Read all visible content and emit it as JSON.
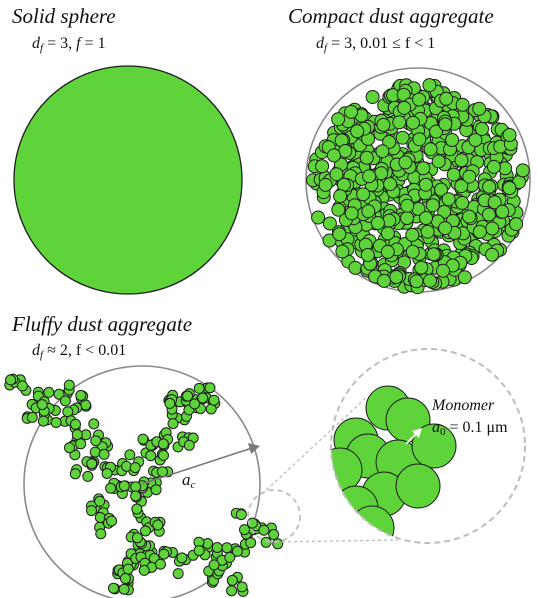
{
  "panels": {
    "solid": {
      "title": "Solid sphere",
      "d_f": "3",
      "f_expr": "1"
    },
    "compact": {
      "title": "Compact dust aggregate",
      "d_f": "3",
      "f_expr": "0.01 ≤ f < 1"
    },
    "fluffy": {
      "title": "Fluffy dust aggregate",
      "d_f": "≈ 2",
      "f_expr": "f < 0.01"
    }
  },
  "labels": {
    "radius": "a",
    "radius_sub": "c",
    "monomer_title": "Monomer",
    "monomer_symbol": "a",
    "monomer_sub": "0",
    "monomer_value": "= 0.1 μm"
  },
  "colors": {
    "fill": "#5fd33a",
    "edge": "#1e1e1e",
    "outline": "#8a8a8a",
    "dashed": "#bdbdbd"
  }
}
